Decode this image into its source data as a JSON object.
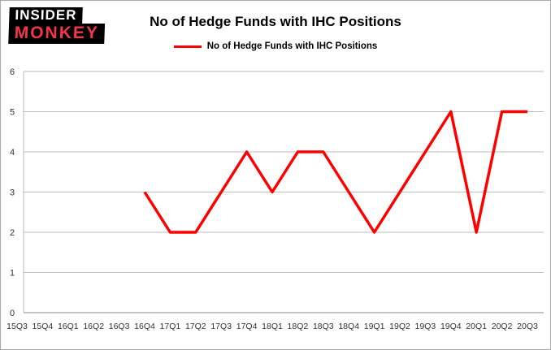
{
  "logo": {
    "line1": "INSIDER",
    "line2": "MONKEY"
  },
  "header": {
    "title": "No of Hedge Funds with IHC Positions"
  },
  "legend": {
    "label": "No of Hedge Funds with IHC Positions",
    "color": "#ff0000"
  },
  "chart_data": {
    "type": "line",
    "title": "No of Hedge Funds with IHC Positions",
    "categories": [
      "15Q3",
      "15Q4",
      "16Q1",
      "16Q2",
      "16Q3",
      "16Q4",
      "17Q1",
      "17Q2",
      "17Q3",
      "17Q4",
      "18Q1",
      "18Q2",
      "18Q3",
      "18Q4",
      "19Q1",
      "19Q2",
      "19Q3",
      "19Q4",
      "20Q1",
      "20Q2",
      "20Q3"
    ],
    "values": [
      null,
      null,
      null,
      null,
      null,
      3,
      2,
      2,
      3,
      4,
      3,
      4,
      4,
      3,
      2,
      3,
      4,
      5,
      2,
      5,
      5
    ],
    "xlabel": "",
    "ylabel": "",
    "ylim": [
      0,
      6
    ],
    "yticks": [
      0,
      1,
      2,
      3,
      4,
      5,
      6
    ],
    "grid": true,
    "legend_position": "top",
    "line_color": "#ff0000",
    "grid_color": "#bdbdbd",
    "axis_color": "#8a8a8a",
    "tick_label_color": "#333333"
  }
}
